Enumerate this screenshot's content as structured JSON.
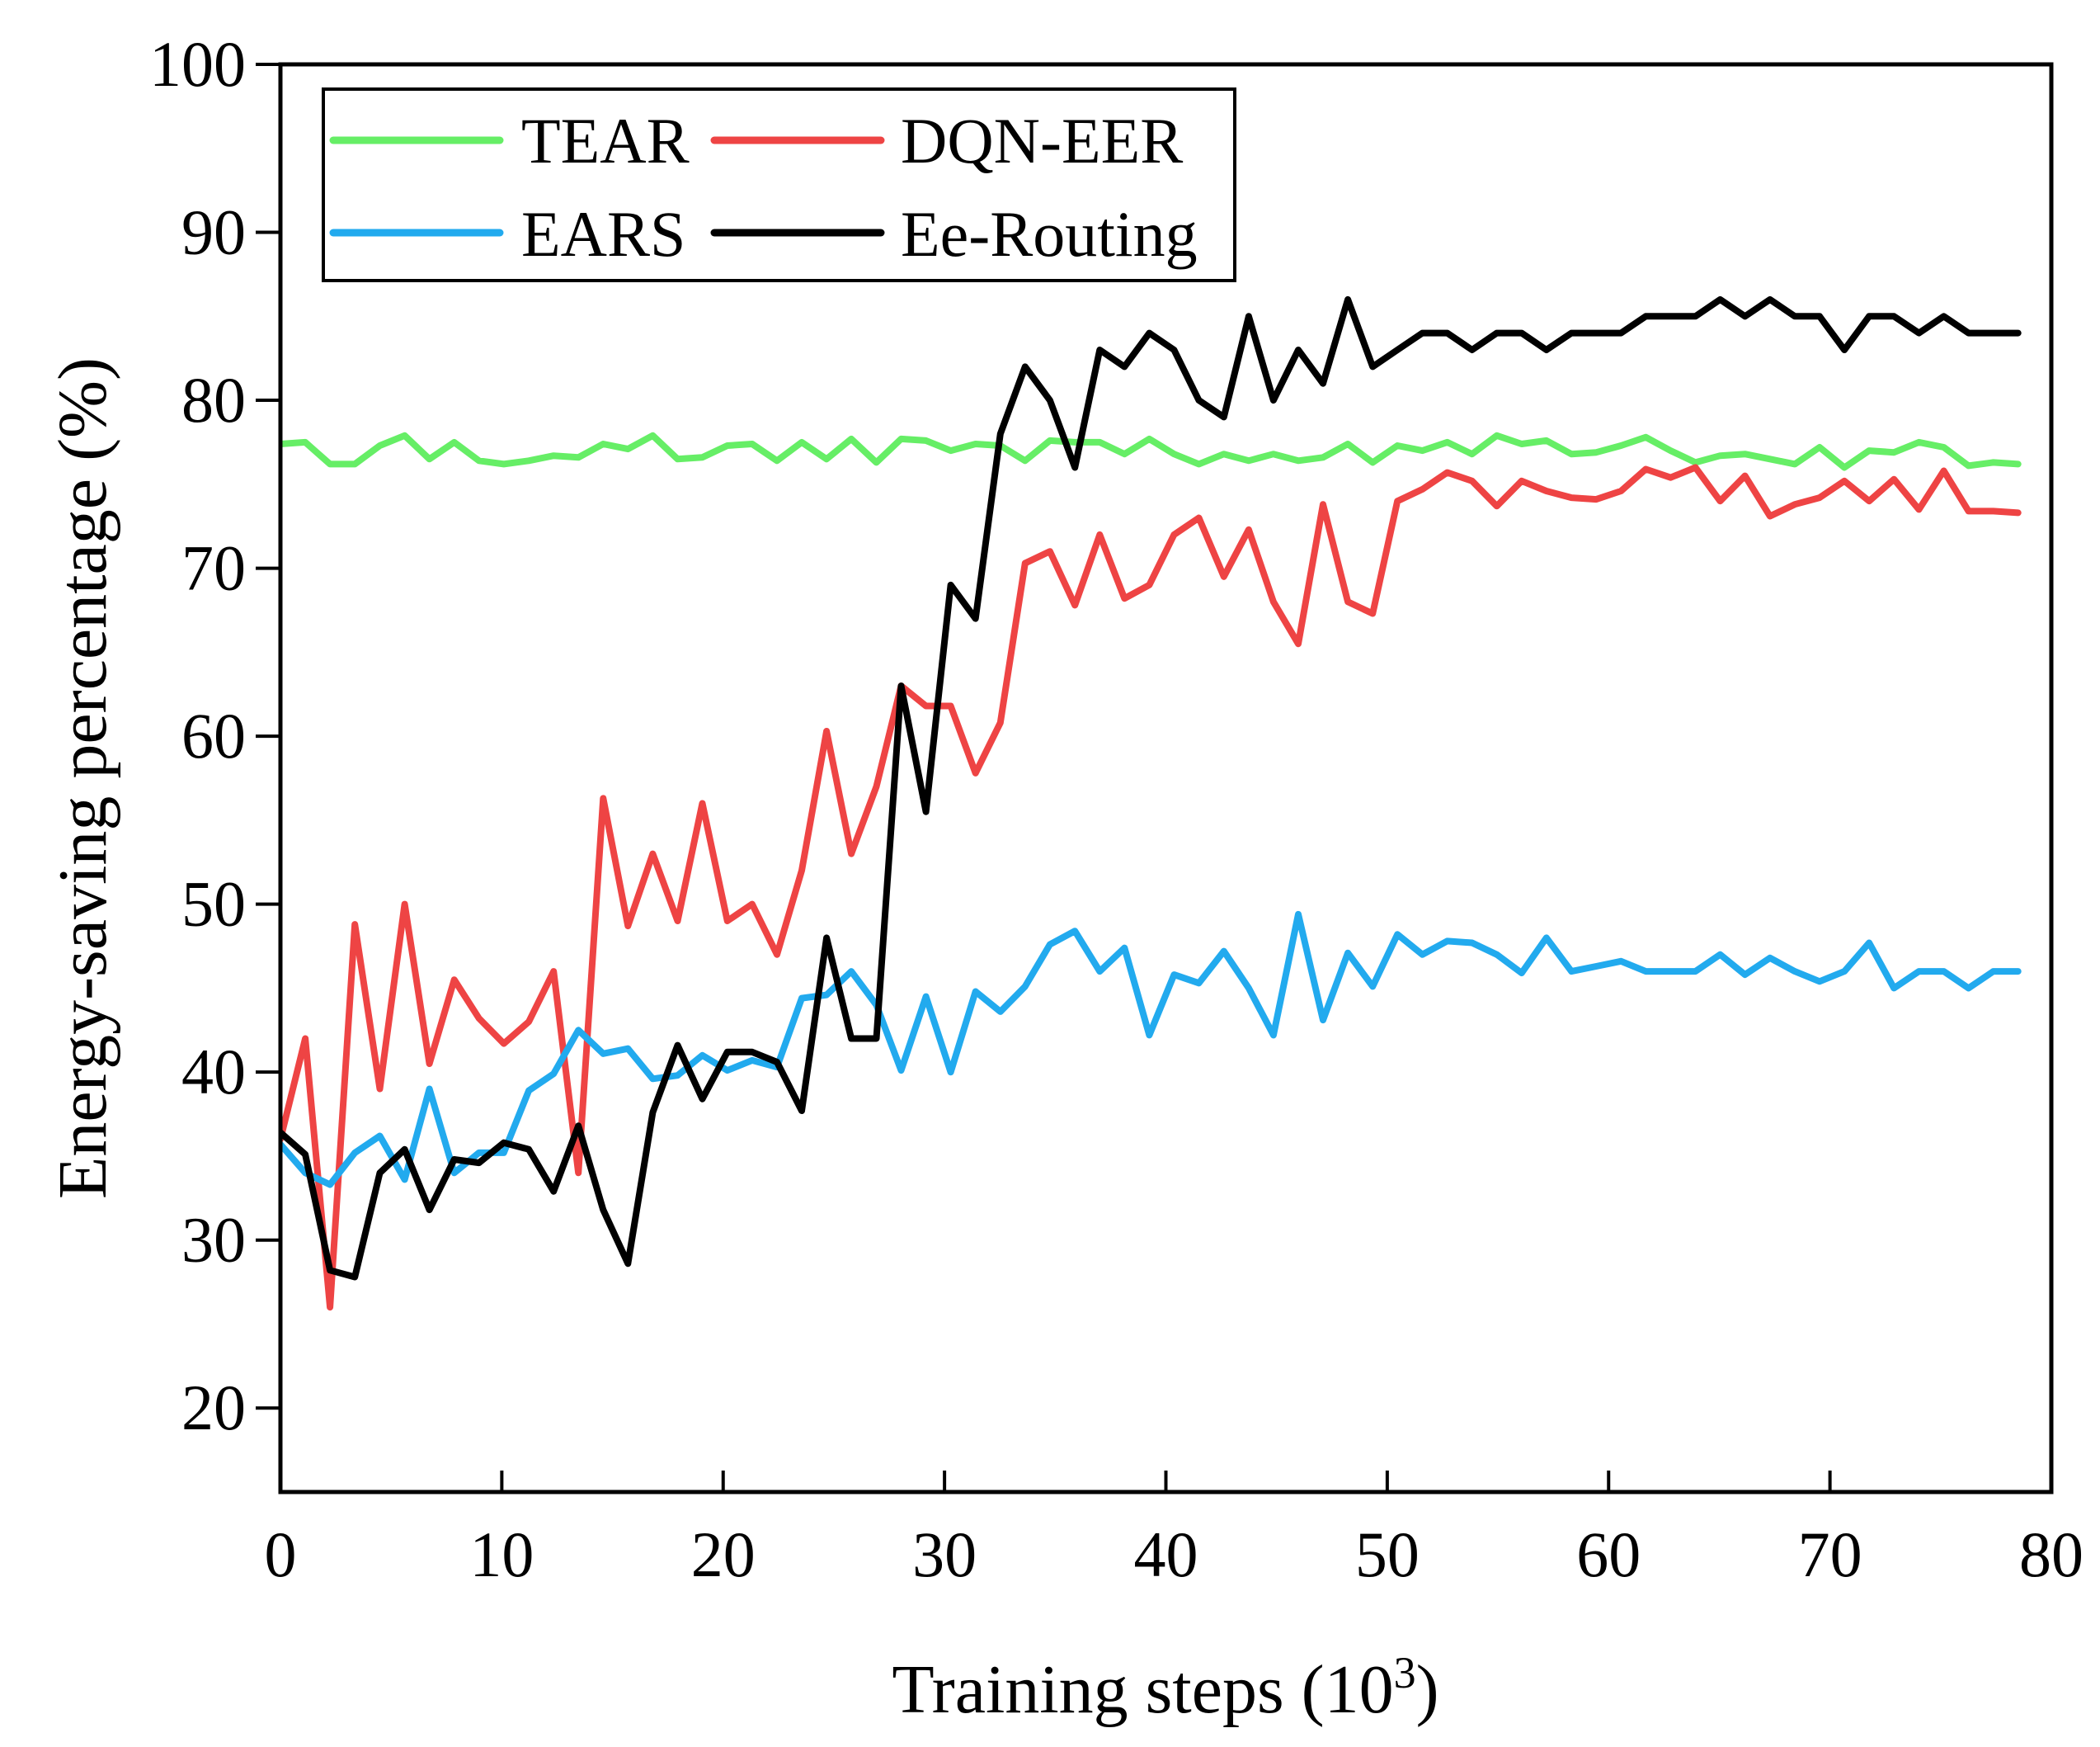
{
  "chart_data": {
    "type": "line",
    "title": "",
    "xlabel": "Training steps (10",
    "xlabel_sup": "3",
    "xlabel_close": ")",
    "ylabel": "Energy-saving percentage (%)",
    "xlim": [
      0,
      80
    ],
    "ylim": [
      15,
      100
    ],
    "xticks": [
      0,
      10,
      20,
      30,
      40,
      50,
      60,
      70,
      80
    ],
    "yticks": [
      20,
      30,
      40,
      50,
      60,
      70,
      80,
      90,
      100
    ],
    "grid": false,
    "legend_position": "top-left",
    "x": [
      0,
      1.12,
      2.24,
      3.36,
      4.49,
      5.61,
      6.73,
      7.85,
      8.97,
      10.09,
      11.22,
      12.34,
      13.46,
      14.58,
      15.7,
      16.82,
      17.94,
      19.06,
      20.19,
      21.31,
      22.43,
      23.55,
      24.67,
      25.79,
      26.92,
      28.04,
      29.16,
      30.28,
      31.4,
      32.52,
      33.64,
      34.76,
      35.89,
      37.01,
      38.13,
      39.25,
      40.37,
      41.49,
      42.62,
      43.74,
      44.86,
      45.98,
      47.1,
      48.22,
      49.34,
      50.46,
      51.59,
      52.71,
      53.83,
      54.95,
      56.07,
      57.19,
      58.32,
      59.44,
      60.56,
      61.68,
      62.8,
      63.92,
      65.04,
      66.16,
      67.29,
      68.41,
      69.53,
      70.65,
      71.77,
      72.89,
      74.02,
      75.14,
      76.26,
      77.38,
      78.5
    ],
    "series": [
      {
        "name": "TEAR",
        "color": "#66ee66",
        "values": [
          77.4,
          77.5,
          76.2,
          76.2,
          77.3,
          77.9,
          76.5,
          77.5,
          76.4,
          76.2,
          76.4,
          76.7,
          76.6,
          77.4,
          77.1,
          77.9,
          76.5,
          76.6,
          77.3,
          77.4,
          76.4,
          77.5,
          76.5,
          77.7,
          76.3,
          77.7,
          77.6,
          77.0,
          77.4,
          77.3,
          76.4,
          77.6,
          77.5,
          77.5,
          76.8,
          77.7,
          76.8,
          76.2,
          76.8,
          76.4,
          76.8,
          76.4,
          76.6,
          77.4,
          76.3,
          77.3,
          77.0,
          77.5,
          76.8,
          77.9,
          77.4,
          77.6,
          76.8,
          76.9,
          77.3,
          77.8,
          77.0,
          76.3,
          76.7,
          76.8,
          76.5,
          76.2,
          77.2,
          76.0,
          77.0,
          76.9,
          77.5,
          77.2,
          76.1,
          76.3,
          76.2
        ]
      },
      {
        "name": "DQN-EER",
        "color": "#ee4444",
        "values": [
          36,
          42,
          26,
          48.8,
          39,
          50,
          40.5,
          45.5,
          43.2,
          41.7,
          43,
          46,
          34,
          56.3,
          48.7,
          53.0,
          49.0,
          56.0,
          49.0,
          50.0,
          47.0,
          52.0,
          60.3,
          53.0,
          57.0,
          63.0,
          61.8,
          61.8,
          57.8,
          60.8,
          70.3,
          71.0,
          67.8,
          72.0,
          68.2,
          69.0,
          72.0,
          73.0,
          69.5,
          72.3,
          68.0,
          65.5,
          73.8,
          68.0,
          67.3,
          74.0,
          74.7,
          75.7,
          75.2,
          73.7,
          75.2,
          74.6,
          74.2,
          74.1,
          74.6,
          75.9,
          75.4,
          76.0,
          74.0,
          75.5,
          73.1,
          73.8,
          74.2,
          75.2,
          74.0,
          75.3,
          73.5,
          75.8,
          73.4,
          73.4,
          73.3
        ]
      },
      {
        "name": "EARS",
        "color": "#22aaee",
        "values": [
          35.7,
          34.0,
          33.3,
          35.2,
          36.2,
          33.6,
          39.0,
          34.0,
          35.2,
          35.2,
          38.9,
          39.9,
          42.5,
          41.1,
          41.4,
          39.6,
          39.8,
          41.0,
          40.1,
          40.7,
          40.3,
          44.4,
          44.6,
          46.0,
          44.0,
          40.1,
          44.5,
          40.0,
          44.8,
          43.6,
          45.1,
          47.6,
          48.4,
          46.0,
          47.4,
          42.2,
          45.8,
          45.3,
          47.2,
          45.0,
          42.2,
          49.4,
          43.1,
          47.1,
          45.1,
          48.2,
          47.0,
          47.8,
          47.7,
          47.0,
          45.9,
          48.0,
          46.0,
          46.3,
          46.6,
          46.0,
          46.0,
          46.0,
          47.0,
          45.8,
          46.8,
          46.0,
          45.4,
          46.0,
          47.7,
          45.0,
          46.0,
          46.0,
          45.0,
          46.0,
          46.0
        ]
      },
      {
        "name": "Ee-Routing",
        "color": "#000000",
        "values": [
          36.4,
          35.1,
          28.2,
          27.8,
          34.0,
          35.4,
          31.8,
          34.8,
          34.6,
          35.8,
          35.4,
          32.9,
          36.8,
          31.8,
          28.6,
          37.6,
          41.6,
          38.4,
          41.2,
          41.2,
          40.6,
          37.7,
          48.0,
          42.0,
          42.0,
          63.0,
          55.5,
          69.0,
          67.0,
          78.0,
          82.0,
          80.0,
          76.0,
          83.0,
          82.0,
          84.0,
          83.0,
          80.0,
          79.0,
          85.0,
          80.0,
          83.0,
          81.0,
          86.0,
          82.0,
          83.0,
          84.0,
          84.0,
          83.0,
          84.0,
          84.0,
          83.0,
          84.0,
          84.0,
          84.0,
          85.0,
          85.0,
          85.0,
          86.0,
          85.0,
          86.0,
          85.0,
          85.0,
          83.0,
          85.0,
          85.0,
          84.0,
          85.0,
          84.0,
          84.0,
          84.0
        ]
      }
    ]
  }
}
